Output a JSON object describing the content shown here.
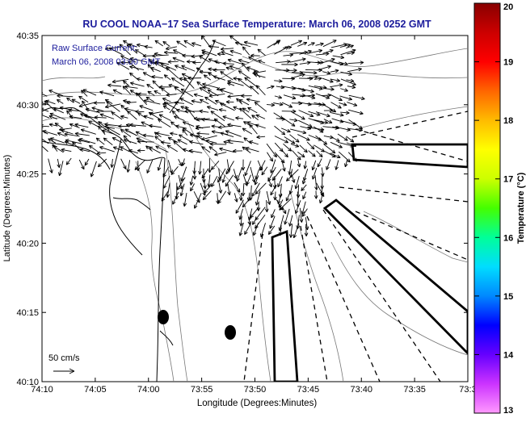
{
  "title": "RU COOL  NOAA−17  Sea Surface Temperature:  March 06, 2008 0252 GMT",
  "overlay": {
    "line1": "Raw Surface Current:",
    "line2": "March 06, 2008 03:00 GMT"
  },
  "axes": {
    "xlabel": "Longitude (Degrees:Minutes)",
    "ylabel": "Latitude (Degrees:Minutes)",
    "xticks": [
      "74:10",
      "74:05",
      "74:00",
      "73:55",
      "73:50",
      "73:45",
      "73:40",
      "73:35",
      "73:3"
    ],
    "yticks": [
      "40:35",
      "40:30",
      "40:25",
      "40:20",
      "40:15",
      "40:10"
    ]
  },
  "scale_label": "50 cm/s",
  "colorbar": {
    "label": "Temperature (°C)",
    "ticks": [
      "20",
      "19",
      "18",
      "17",
      "16",
      "15",
      "14",
      "13"
    ],
    "min": 13,
    "max": 20,
    "colors": [
      "#ff99ff",
      "#cc33ff",
      "#6600ff",
      "#0000ff",
      "#0088ff",
      "#00ddff",
      "#00ff99",
      "#44ff00",
      "#ccff00",
      "#ffff00",
      "#ffbb00",
      "#ff6600",
      "#ff0000",
      "#cc0000",
      "#880000"
    ]
  }
}
